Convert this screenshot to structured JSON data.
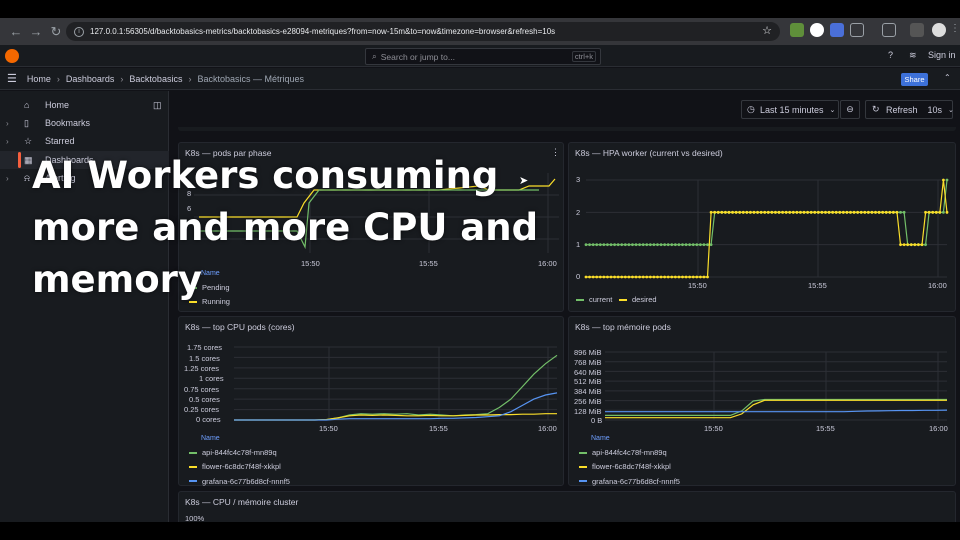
{
  "browser": {
    "url": "127.0.0.1:56305/d/backtobasics-metrics/backtobasics-e28094-metriques?from=now-15m&to=now&timezone=browser&refresh=10s"
  },
  "topbar": {
    "search_placeholder": "Search or jump to...",
    "search_shortcut": "ctrl+k",
    "signin": "Sign in"
  },
  "breadcrumb": {
    "home": "Home",
    "dashboards": "Dashboards",
    "folder": "Backtobasics",
    "current": "Backtobasics — Métriques",
    "share": "Share"
  },
  "sidebar": {
    "items": [
      {
        "label": "Home",
        "icon": "home-icon"
      },
      {
        "label": "Bookmarks",
        "icon": "bookmark-icon"
      },
      {
        "label": "Starred",
        "icon": "star-icon"
      },
      {
        "label": "Dashboards",
        "icon": "grid-icon"
      },
      {
        "label": "Alerting",
        "icon": "bell-icon"
      }
    ]
  },
  "toolbar": {
    "timerange": "Last 15 minutes",
    "refresh": "Refresh",
    "interval": "10s"
  },
  "panels": {
    "pods_phase": {
      "title": "K8s — pods par phase",
      "legend_header": "Name",
      "legend": [
        "Pending",
        "Running"
      ]
    },
    "hpa": {
      "title": "K8s — HPA worker (current vs desired)",
      "legend": [
        "current",
        "desired"
      ]
    },
    "cpu": {
      "title": "K8s — top CPU pods (cores)",
      "legend_header": "Name",
      "legend": [
        "api-844fc4c78f-mn89q",
        "flower-6c8dc7f48f-xkkpl",
        "grafana-6c77b6d8cf-nnnf5"
      ]
    },
    "mem": {
      "title": "K8s — top mémoire pods",
      "legend_header": "Name",
      "legend": [
        "api-844fc4c78f-mn89q",
        "flower-6c8dc7f48f-xkkpl",
        "grafana-6c77b6d8cf-nnnf5"
      ]
    },
    "cluster": {
      "title": "K8s — CPU / mémoire cluster",
      "partial_tick": "100%"
    }
  },
  "colors": {
    "green": "#73bf69",
    "yellow": "#fade2a",
    "blue": "#5794f2",
    "orange": "#ff9830",
    "red": "#f2495c",
    "purple": "#b877d9",
    "grafana_orange": "#f46800",
    "share_blue": "#3d71d9"
  },
  "chart_data": [
    {
      "type": "line",
      "title": "K8s — pods par phase",
      "x_ticks": [
        "15:50",
        "15:55",
        "16:00"
      ],
      "y_ticks": [
        "6",
        "8"
      ],
      "series": [
        {
          "name": "Pending",
          "color": "#73bf69",
          "values": []
        },
        {
          "name": "Running",
          "color": "#fade2a",
          "values": []
        }
      ]
    },
    {
      "type": "line",
      "title": "K8s — HPA worker (current vs desired)",
      "x_ticks": [
        "15:50",
        "15:55",
        "16:00"
      ],
      "y_ticks": [
        "0",
        "1",
        "2",
        "3"
      ],
      "ylim": [
        0,
        3
      ],
      "series": [
        {
          "name": "current",
          "color": "#73bf69",
          "values": [
            1,
            1,
            1,
            1,
            1,
            1,
            1,
            1,
            1,
            1,
            1,
            1,
            1,
            1,
            1,
            1,
            1,
            1,
            1,
            1,
            1,
            1,
            1,
            1,
            1,
            1,
            1,
            1,
            1,
            1,
            1,
            1,
            1,
            1,
            1,
            1,
            2,
            2,
            2,
            2,
            2,
            2,
            2,
            2,
            2,
            2,
            2,
            2,
            2,
            2,
            2,
            2,
            2,
            2,
            2,
            2,
            2,
            2,
            2,
            2,
            2,
            2,
            2,
            2,
            2,
            2,
            2,
            2,
            2,
            2,
            2,
            2,
            2,
            2,
            2,
            2,
            2,
            2,
            2,
            2,
            2,
            2,
            2,
            2,
            2,
            2,
            2,
            2,
            2,
            2,
            1,
            1,
            1,
            1,
            1,
            1,
            2,
            2,
            2,
            2,
            2,
            3
          ]
        },
        {
          "name": "desired",
          "color": "#fade2a",
          "values": [
            0,
            0,
            0,
            0,
            0,
            0,
            0,
            0,
            0,
            0,
            0,
            0,
            0,
            0,
            0,
            0,
            0,
            0,
            0,
            0,
            0,
            0,
            0,
            0,
            0,
            0,
            0,
            0,
            0,
            0,
            0,
            0,
            0,
            0,
            0,
            2,
            2,
            2,
            2,
            2,
            2,
            2,
            2,
            2,
            2,
            2,
            2,
            2,
            2,
            2,
            2,
            2,
            2,
            2,
            2,
            2,
            2,
            2,
            2,
            2,
            2,
            2,
            2,
            2,
            2,
            2,
            2,
            2,
            2,
            2,
            2,
            2,
            2,
            2,
            2,
            2,
            2,
            2,
            2,
            2,
            2,
            2,
            2,
            2,
            2,
            2,
            2,
            2,
            1,
            1,
            1,
            1,
            1,
            1,
            1,
            2,
            2,
            2,
            2,
            2,
            3,
            2
          ]
        }
      ]
    },
    {
      "type": "line",
      "title": "K8s — top CPU pods (cores)",
      "x_ticks": [
        "15:50",
        "15:55",
        "16:00"
      ],
      "y_ticks": [
        "0 cores",
        "0.25 cores",
        "0.5 cores",
        "0.75 cores",
        "1 cores",
        "1.25 cores",
        "1.5 cores",
        "1.75 cores"
      ],
      "ylim": [
        0,
        1.75
      ],
      "series": [
        {
          "name": "api-844fc4c78f-mn89q",
          "color": "#73bf69",
          "values": [
            0,
            0,
            0,
            0,
            0,
            0,
            0,
            0,
            0.01,
            0.05,
            0.12,
            0.15,
            0.14,
            0.15,
            0.14,
            0.15,
            0.12,
            0.14,
            0.12,
            0.1,
            0.12,
            0.13,
            0.15,
            0.3,
            0.5,
            0.8,
            1.1,
            1.35,
            1.55
          ]
        },
        {
          "name": "flower-6c8dc7f48f-xkkpl",
          "color": "#fade2a",
          "values": [
            0,
            0,
            0,
            0,
            0,
            0,
            0,
            0,
            0.01,
            0.05,
            0.1,
            0.12,
            0.11,
            0.12,
            0.11,
            0.1,
            0.1,
            0.11,
            0.1,
            0.1,
            0.11,
            0.12,
            0.12,
            0.13,
            0.13,
            0.14,
            0.14,
            0.15,
            0.15
          ]
        },
        {
          "name": "grafana-6c77b6d8cf-nnnf5",
          "color": "#5794f2",
          "values": [
            0,
            0,
            0,
            0,
            0,
            0,
            0,
            0,
            0,
            0.02,
            0.03,
            0.03,
            0.03,
            0.03,
            0.03,
            0.03,
            0.03,
            0.03,
            0.04,
            0.04,
            0.05,
            0.06,
            0.08,
            0.1,
            0.2,
            0.35,
            0.5,
            0.6,
            0.65
          ]
        }
      ]
    },
    {
      "type": "line",
      "title": "K8s — top mémoire pods",
      "x_ticks": [
        "15:50",
        "15:55",
        "16:00"
      ],
      "y_ticks": [
        "0 B",
        "128 MiB",
        "256 MiB",
        "384 MiB",
        "512 MiB",
        "640 MiB",
        "768 MiB",
        "896 MiB"
      ],
      "ylim": [
        0,
        896
      ],
      "series": [
        {
          "name": "api-844fc4c78f-mn89q",
          "color": "#73bf69",
          "values": [
            60,
            60,
            60,
            60,
            60,
            60,
            60,
            60,
            60,
            60,
            60,
            60,
            120,
            250,
            270,
            270,
            270,
            270,
            270,
            270,
            270,
            270,
            270,
            270,
            270,
            270,
            270,
            270,
            270,
            270,
            270
          ]
        },
        {
          "name": "flower-6c8dc7f48f-xkkpl",
          "color": "#fade2a",
          "values": [
            30,
            30,
            30,
            30,
            30,
            30,
            30,
            30,
            30,
            30,
            30,
            30,
            80,
            200,
            260,
            260,
            260,
            260,
            260,
            260,
            260,
            260,
            260,
            260,
            260,
            260,
            260,
            260,
            260,
            260,
            260
          ]
        },
        {
          "name": "grafana-6c77b6d8cf-nnnf5",
          "color": "#5794f2",
          "values": [
            110,
            110,
            110,
            110,
            110,
            110,
            110,
            110,
            110,
            110,
            110,
            110,
            110,
            110,
            110,
            110,
            110,
            110,
            110,
            110,
            110,
            110,
            115,
            118,
            120,
            122,
            125,
            125,
            128,
            128,
            130
          ]
        }
      ]
    }
  ],
  "caption": {
    "text": "AI Workers consuming more and more CPU and memory"
  }
}
